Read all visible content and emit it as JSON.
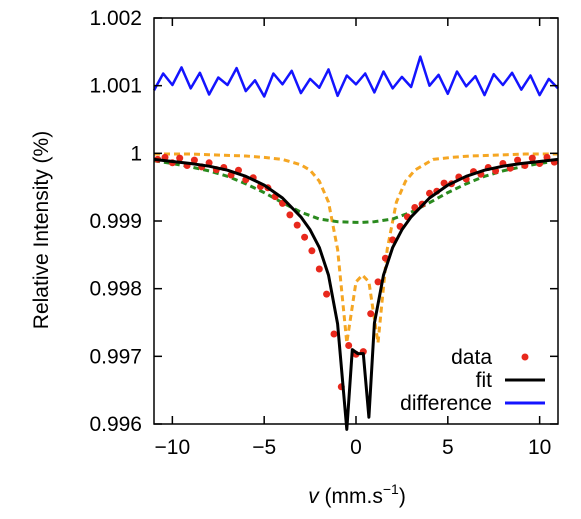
{
  "chart_data": {
    "type": "scatter",
    "title": "",
    "xlabel": {
      "symbol": "v",
      "text": " (mm.s",
      "exponent": "−1",
      "close": ")"
    },
    "ylabel": "Relative Intensity (%)",
    "xlim": [
      -11,
      11
    ],
    "ylim": [
      0.996,
      1.002
    ],
    "x_ticks": [
      -10,
      -5,
      0,
      5,
      10
    ],
    "x_tick_labels": [
      "−10",
      "−5",
      "0",
      "5",
      "10"
    ],
    "y_ticks": [
      0.996,
      0.997,
      0.998,
      0.999,
      1,
      1.001,
      1.002
    ],
    "y_tick_labels": [
      "0.996",
      "0.997",
      "0.998",
      "0.999",
      "1",
      "1.001",
      "1.002"
    ],
    "grid": false,
    "legend_position": "bottom-right",
    "legend": [
      "data",
      "fit",
      "difference"
    ],
    "colors": {
      "data": "#e8281c",
      "fit": "#000000",
      "difference": "#1414ff",
      "component_narrow": "#f5a623",
      "component_broad": "#2a8a1e"
    },
    "series": [
      {
        "name": "data",
        "kind": "points",
        "x": [
          -10.8,
          -10.4,
          -10.0,
          -9.6,
          -9.2,
          -8.8,
          -8.4,
          -8.0,
          -7.6,
          -7.2,
          -6.8,
          -6.4,
          -6.0,
          -5.6,
          -5.2,
          -4.8,
          -4.4,
          -4.0,
          -3.6,
          -3.2,
          -2.8,
          -2.4,
          -2.0,
          -1.6,
          -1.2,
          -0.8,
          -0.4,
          0.0,
          0.4,
          0.8,
          1.2,
          1.6,
          2.0,
          2.4,
          2.8,
          3.2,
          3.6,
          4.0,
          4.4,
          4.8,
          5.2,
          5.6,
          6.0,
          6.4,
          6.8,
          7.2,
          7.6,
          8.0,
          8.4,
          8.8,
          9.2,
          9.6,
          10.0,
          10.4,
          10.8
        ],
        "y": [
          0.99991,
          0.99994,
          0.99986,
          0.99993,
          0.99982,
          0.9999,
          0.9998,
          0.99986,
          0.99976,
          0.99979,
          0.99968,
          0.99975,
          0.99961,
          0.99964,
          0.99951,
          0.99949,
          0.99936,
          0.99926,
          0.99909,
          0.99894,
          0.99876,
          0.99856,
          0.99829,
          0.99792,
          0.99733,
          0.99655,
          0.99716,
          0.99703,
          0.99707,
          0.99763,
          0.9981,
          0.99845,
          0.99872,
          0.99892,
          0.99906,
          0.9992,
          0.99925,
          0.99941,
          0.99944,
          0.99956,
          0.99955,
          0.99965,
          0.99962,
          0.99973,
          0.99969,
          0.99979,
          0.99974,
          0.99985,
          0.99978,
          0.9999,
          0.99982,
          0.99993,
          0.99985,
          0.99994,
          0.99987
        ]
      },
      {
        "name": "fit",
        "kind": "line",
        "x": [
          -11,
          -10,
          -9,
          -8,
          -7,
          -6,
          -5,
          -4,
          -3,
          -2.5,
          -2,
          -1.5,
          -1,
          -0.5,
          -0.2,
          0.1,
          0.4,
          0.7,
          1,
          1.5,
          2,
          2.5,
          3,
          4,
          5,
          6,
          7,
          8,
          9,
          10,
          11
        ],
        "y": [
          0.99991,
          0.99988,
          0.99985,
          0.99981,
          0.99975,
          0.99966,
          0.99953,
          0.99934,
          0.99906,
          0.99887,
          0.99861,
          0.9982,
          0.99748,
          0.99592,
          0.9971,
          0.99704,
          0.99704,
          0.9961,
          0.99749,
          0.9982,
          0.99861,
          0.99887,
          0.99906,
          0.99934,
          0.99953,
          0.99966,
          0.99975,
          0.99981,
          0.99985,
          0.99988,
          0.99991
        ]
      },
      {
        "name": "component_narrow",
        "kind": "dashed",
        "x": [
          -11,
          -9,
          -8,
          -7,
          -6,
          -5,
          -4,
          -3,
          -2.5,
          -2,
          -1.5,
          -1,
          -0.5,
          0,
          0.35,
          0.7,
          1.2,
          1.7,
          2.2,
          2.7,
          3.2,
          4.2,
          5.2,
          6.2,
          7.2,
          8.2,
          9.2,
          11
        ],
        "y": [
          0.99999,
          0.99999,
          0.99998,
          0.99997,
          0.99996,
          0.99994,
          0.99991,
          0.99983,
          0.99975,
          0.99959,
          0.99928,
          0.99858,
          0.9972,
          0.9981,
          0.9982,
          0.9981,
          0.9972,
          0.99858,
          0.99928,
          0.99959,
          0.99975,
          0.99991,
          0.99994,
          0.99996,
          0.99997,
          0.99998,
          0.99999,
          0.99999
        ]
      },
      {
        "name": "component_broad",
        "kind": "dashed",
        "x": [
          -11,
          -10,
          -9,
          -8,
          -7,
          -6,
          -5,
          -4,
          -3,
          -2,
          -1,
          0,
          0.35,
          1,
          2,
          3,
          4,
          5,
          6,
          7,
          8,
          9,
          10,
          11
        ],
        "y": [
          0.99989,
          0.99985,
          0.9998,
          0.99974,
          0.99966,
          0.99955,
          0.99942,
          0.99927,
          0.99913,
          0.99903,
          0.99899,
          0.99898,
          0.99898,
          0.99899,
          0.99903,
          0.99913,
          0.99927,
          0.99942,
          0.99955,
          0.99966,
          0.99974,
          0.9998,
          0.99985,
          0.99989
        ]
      },
      {
        "name": "difference",
        "kind": "line",
        "x": [
          -11,
          -10.5,
          -10,
          -9.5,
          -9,
          -8.5,
          -8,
          -7.5,
          -7,
          -6.5,
          -6,
          -5.5,
          -5,
          -4.5,
          -4,
          -3.5,
          -3,
          -2.5,
          -2,
          -1.5,
          -1,
          -0.5,
          0,
          0.5,
          1,
          1.5,
          2,
          2.5,
          3,
          3.5,
          4,
          4.5,
          5,
          5.5,
          6,
          6.5,
          7,
          7.5,
          8,
          8.5,
          9,
          9.5,
          10,
          10.5,
          11
        ],
        "y": [
          1.00093,
          1.00118,
          1.00101,
          1.00127,
          1.00096,
          1.00119,
          1.00087,
          1.00112,
          1.00101,
          1.00126,
          1.00092,
          1.00108,
          1.00084,
          1.00118,
          1.00102,
          1.00122,
          1.00089,
          1.0011,
          1.00097,
          1.00124,
          1.00085,
          1.00115,
          1.00102,
          1.00118,
          1.0009,
          1.00121,
          1.00096,
          1.00113,
          1.00098,
          1.00143,
          1.001,
          1.00116,
          1.00088,
          1.00121,
          1.00099,
          1.00114,
          1.00086,
          1.00117,
          1.00101,
          1.00119,
          1.00094,
          1.00115,
          1.00086,
          1.0011,
          1.00096
        ]
      }
    ]
  }
}
